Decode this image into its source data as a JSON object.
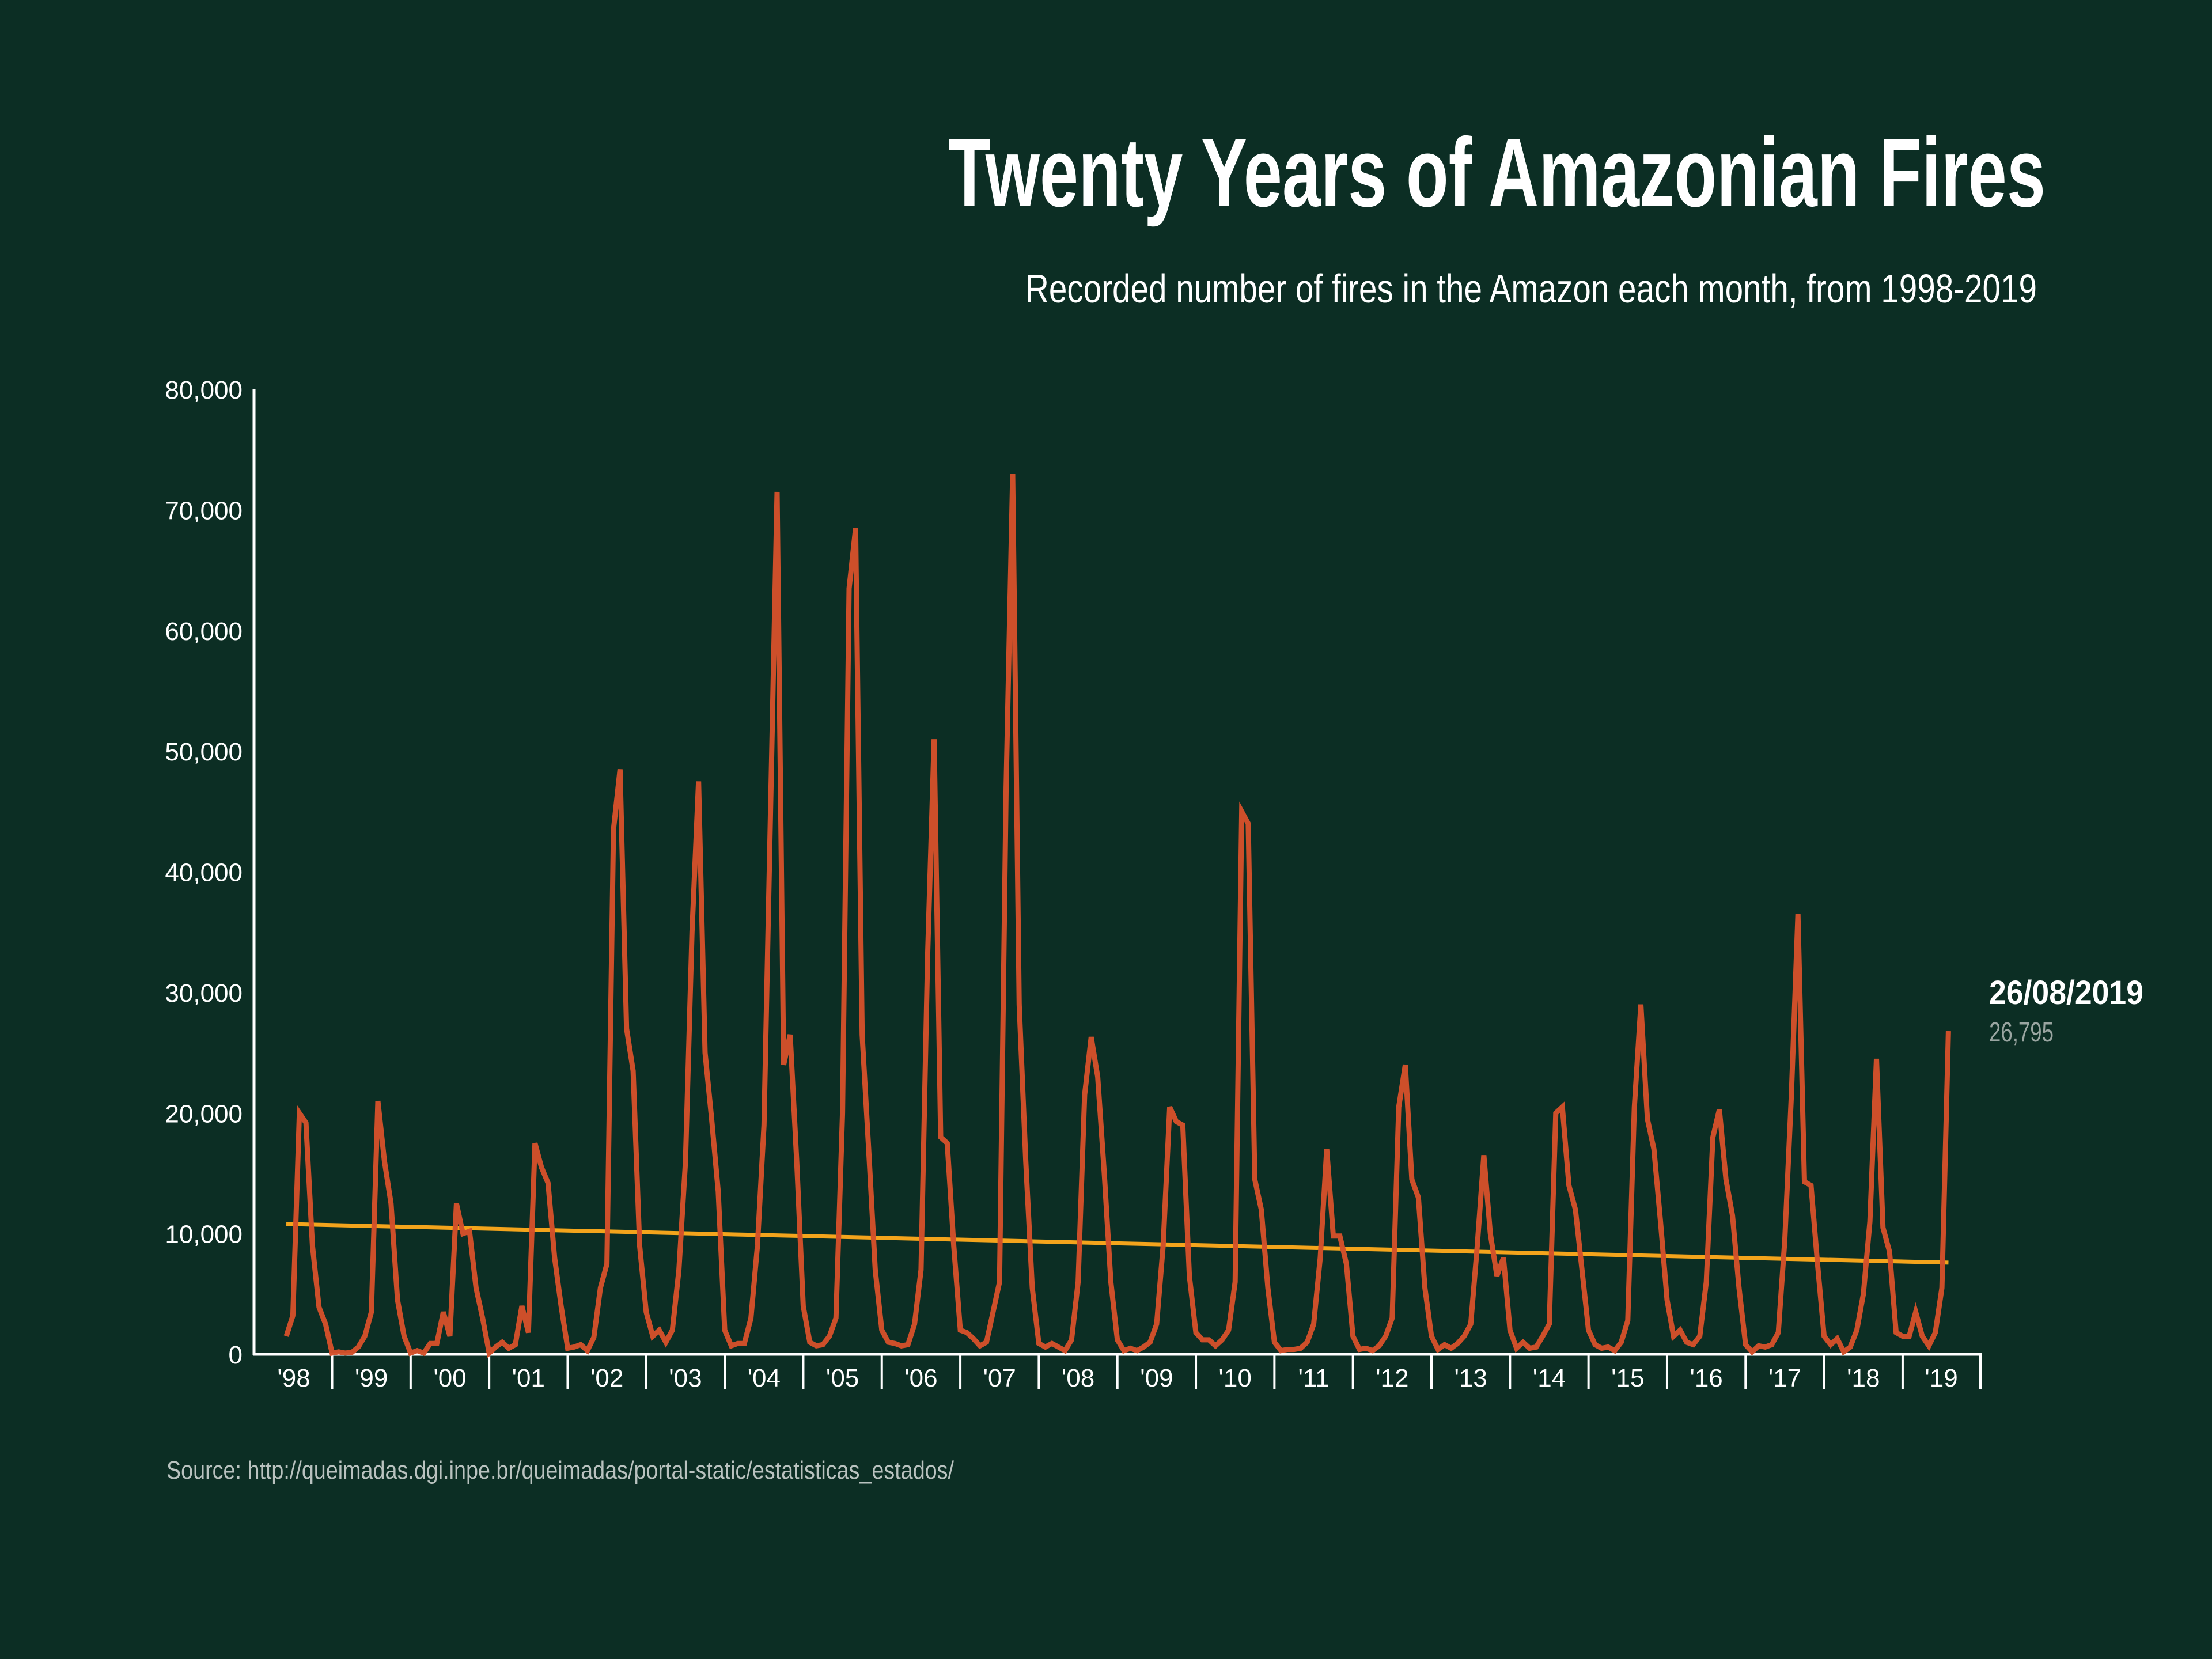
{
  "colors": {
    "background": "#0c2e24",
    "series": "#d4512a",
    "trend": "#f4a41c",
    "text": "#ffffff",
    "muted": "#9aa5a1"
  },
  "chart_data": {
    "type": "line",
    "title": "Twenty Years of Amazonian Fires",
    "subtitle": "Recorded number of fires in the Amazon each month, from 1998-2019",
    "source": "Source: http://queimadas.dgi.inpe.br/queimadas/portal-static/estatisticas_estados/",
    "ylim": [
      0,
      80000
    ],
    "yticks": [
      "0",
      "10,000",
      "20,000",
      "30,000",
      "40,000",
      "50,000",
      "60,000",
      "70,000",
      "80,000"
    ],
    "xtick_labels": [
      "'98",
      "'99",
      "'00",
      "'01",
      "'02",
      "'03",
      "'04",
      "'05",
      "'06",
      "'07",
      "'08",
      "'09",
      "'10",
      "'11",
      "'12",
      "'13",
      "'14",
      "'15",
      "'16",
      "'17",
      "'18",
      "'19"
    ],
    "grid": false,
    "annotation": {
      "date": "26/08/2019",
      "value": "26,795"
    },
    "trend": {
      "x": [
        "1998-06",
        "2019-08"
      ],
      "values": [
        10800,
        7600
      ]
    },
    "x": [
      "1998-06",
      "1998-07",
      "1998-08",
      "1998-09",
      "1998-10",
      "1998-11",
      "1998-12",
      "1999-01",
      "1999-02",
      "1999-03",
      "1999-04",
      "1999-05",
      "1999-06",
      "1999-07",
      "1999-08",
      "1999-09",
      "1999-10",
      "1999-11",
      "1999-12",
      "2000-01",
      "2000-02",
      "2000-03",
      "2000-04",
      "2000-05",
      "2000-06",
      "2000-07",
      "2000-08",
      "2000-09",
      "2000-10",
      "2000-11",
      "2000-12",
      "2001-01",
      "2001-02",
      "2001-03",
      "2001-04",
      "2001-05",
      "2001-06",
      "2001-07",
      "2001-08",
      "2001-09",
      "2001-10",
      "2001-11",
      "2001-12",
      "2002-01",
      "2002-02",
      "2002-03",
      "2002-04",
      "2002-05",
      "2002-06",
      "2002-07",
      "2002-08",
      "2002-09",
      "2002-10",
      "2002-11",
      "2002-12",
      "2003-01",
      "2003-02",
      "2003-03",
      "2003-04",
      "2003-05",
      "2003-06",
      "2003-07",
      "2003-08",
      "2003-09",
      "2003-10",
      "2003-11",
      "2003-12",
      "2004-01",
      "2004-02",
      "2004-03",
      "2004-04",
      "2004-05",
      "2004-06",
      "2004-07",
      "2004-08",
      "2004-09",
      "2004-10",
      "2004-11",
      "2004-12",
      "2005-01",
      "2005-02",
      "2005-03",
      "2005-04",
      "2005-05",
      "2005-06",
      "2005-07",
      "2005-08",
      "2005-09",
      "2005-10",
      "2005-11",
      "2005-12",
      "2006-01",
      "2006-02",
      "2006-03",
      "2006-04",
      "2006-05",
      "2006-06",
      "2006-07",
      "2006-08",
      "2006-09",
      "2006-10",
      "2006-11",
      "2006-12",
      "2007-01",
      "2007-02",
      "2007-03",
      "2007-04",
      "2007-05",
      "2007-06",
      "2007-07",
      "2007-08",
      "2007-09",
      "2007-10",
      "2007-11",
      "2007-12",
      "2008-01",
      "2008-02",
      "2008-03",
      "2008-04",
      "2008-05",
      "2008-06",
      "2008-07",
      "2008-08",
      "2008-09",
      "2008-10",
      "2008-11",
      "2008-12",
      "2009-01",
      "2009-02",
      "2009-03",
      "2009-04",
      "2009-05",
      "2009-06",
      "2009-07",
      "2009-08",
      "2009-09",
      "2009-10",
      "2009-11",
      "2009-12",
      "2010-01",
      "2010-02",
      "2010-03",
      "2010-04",
      "2010-05",
      "2010-06",
      "2010-07",
      "2010-08",
      "2010-09",
      "2010-10",
      "2010-11",
      "2010-12",
      "2011-01",
      "2011-02",
      "2011-03",
      "2011-04",
      "2011-05",
      "2011-06",
      "2011-07",
      "2011-08",
      "2011-09",
      "2011-10",
      "2011-11",
      "2011-12",
      "2012-01",
      "2012-02",
      "2012-03",
      "2012-04",
      "2012-05",
      "2012-06",
      "2012-07",
      "2012-08",
      "2012-09",
      "2012-10",
      "2012-11",
      "2012-12",
      "2013-01",
      "2013-02",
      "2013-03",
      "2013-04",
      "2013-05",
      "2013-06",
      "2013-07",
      "2013-08",
      "2013-09",
      "2013-10",
      "2013-11",
      "2013-12",
      "2014-01",
      "2014-02",
      "2014-03",
      "2014-04",
      "2014-05",
      "2014-06",
      "2014-07",
      "2014-08",
      "2014-09",
      "2014-10",
      "2014-11",
      "2014-12",
      "2015-01",
      "2015-02",
      "2015-03",
      "2015-04",
      "2015-05",
      "2015-06",
      "2015-07",
      "2015-08",
      "2015-09",
      "2015-10",
      "2015-11",
      "2015-12",
      "2016-01",
      "2016-02",
      "2016-03",
      "2016-04",
      "2016-05",
      "2016-06",
      "2016-07",
      "2016-08",
      "2016-09",
      "2016-10",
      "2016-11",
      "2016-12",
      "2017-01",
      "2017-02",
      "2017-03",
      "2017-04",
      "2017-05",
      "2017-06",
      "2017-07",
      "2017-08",
      "2017-09",
      "2017-10",
      "2017-11",
      "2017-12",
      "2018-01",
      "2018-02",
      "2018-03",
      "2018-04",
      "2018-05",
      "2018-06",
      "2018-07",
      "2018-08",
      "2018-09",
      "2018-10",
      "2018-11",
      "2018-12",
      "2019-01",
      "2019-02",
      "2019-03",
      "2019-04",
      "2019-05",
      "2019-06",
      "2019-07",
      "2019-08"
    ],
    "values": [
      1500,
      3200,
      20000,
      19200,
      9000,
      3900,
      2500,
      100,
      200,
      100,
      150,
      600,
      1500,
      3500,
      21000,
      16000,
      12500,
      4500,
      1500,
      100,
      300,
      100,
      900,
      900,
      3500,
      1500,
      12500,
      10000,
      10200,
      5500,
      3000,
      100,
      600,
      1000,
      500,
      800,
      4000,
      1800,
      17500,
      15500,
      14200,
      8000,
      4000,
      500,
      600,
      800,
      300,
      1400,
      5500,
      7500,
      43500,
      48500,
      27000,
      23500,
      9000,
      3500,
      1500,
      2000,
      1000,
      2000,
      7000,
      16000,
      35000,
      47500,
      25000,
      19500,
      13500,
      2000,
      700,
      900,
      900,
      3000,
      9000,
      19000,
      45000,
      71500,
      24000,
      26500,
      16000,
      4000,
      1000,
      700,
      800,
      1500,
      3000,
      20000,
      63500,
      68500,
      26500,
      17000,
      7000,
      2000,
      1000,
      900,
      700,
      800,
      2500,
      7000,
      33000,
      51000,
      18000,
      17500,
      9000,
      2000,
      1800,
      1300,
      700,
      1000,
      3500,
      6000,
      47000,
      73000,
      29000,
      16000,
      5500,
      900,
      600,
      900,
      600,
      300,
      1200,
      6000,
      21500,
      26300,
      23000,
      15000,
      6000,
      1200,
      300,
      500,
      300,
      600,
      1000,
      2500,
      9000,
      20500,
      19300,
      19000,
      6500,
      1800,
      1200,
      1200,
      700,
      1200,
      2000,
      6000,
      45000,
      44000,
      14500,
      12000,
      5500,
      1000,
      300,
      400,
      400,
      500,
      1000,
      2500,
      8000,
      17000,
      9800,
      9800,
      7500,
      1500,
      400,
      500,
      300,
      700,
      1500,
      3000,
      20500,
      24000,
      14500,
      13000,
      5500,
      1500,
      400,
      800,
      500,
      900,
      1500,
      2500,
      9000,
      16500,
      10000,
      6500,
      8000,
      2000,
      500,
      1000,
      500,
      600,
      1500,
      2500,
      20000,
      20500,
      14000,
      12000,
      7000,
      2000,
      800,
      500,
      600,
      300,
      1000,
      2800,
      20500,
      29000,
      19500,
      17000,
      11000,
      4500,
      1500,
      2000,
      1000,
      800,
      1500,
      6000,
      18000,
      20300,
      14500,
      11500,
      5500,
      800,
      200,
      700,
      600,
      800,
      1800,
      9500,
      21500,
      36500,
      14300,
      14000,
      7500,
      1500,
      800,
      1300,
      200,
      600,
      2000,
      5000,
      11000,
      24500,
      10500,
      8500,
      1800,
      1500,
      1500,
      3500,
      1500,
      700,
      1800,
      5500,
      26795
    ]
  }
}
